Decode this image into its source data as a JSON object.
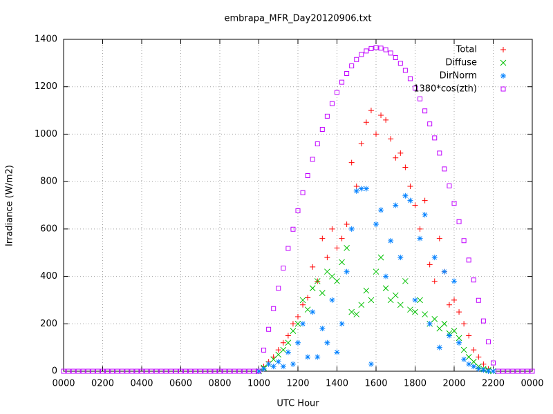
{
  "chart_data": {
    "type": "scatter",
    "title": "embrapa_MFR_Day20120906.txt",
    "xlabel": "UTC Hour",
    "ylabel": "Irradiance (W/m2)",
    "xlim": [
      0,
      24
    ],
    "ylim": [
      0,
      1400
    ],
    "xticks": [
      {
        "value": 0,
        "label": "0000"
      },
      {
        "value": 2,
        "label": "0200"
      },
      {
        "value": 4,
        "label": "0400"
      },
      {
        "value": 6,
        "label": "0600"
      },
      {
        "value": 8,
        "label": "0800"
      },
      {
        "value": 10,
        "label": "1000"
      },
      {
        "value": 12,
        "label": "1200"
      },
      {
        "value": 14,
        "label": "1400"
      },
      {
        "value": 16,
        "label": "1600"
      },
      {
        "value": 18,
        "label": "1800"
      },
      {
        "value": 20,
        "label": "2000"
      },
      {
        "value": 22,
        "label": "2200"
      },
      {
        "value": 24,
        "label": "0000"
      }
    ],
    "yticks": [
      0,
      200,
      400,
      600,
      800,
      1000,
      1200,
      1400
    ],
    "grid": true,
    "legend": "top-right",
    "series": [
      {
        "name": "Total",
        "color": "#ff0000",
        "marker": "plus",
        "x": [
          10,
          10.25,
          10.5,
          10.75,
          11,
          11.25,
          11.5,
          11.75,
          12,
          12.25,
          12.5,
          12.75,
          13,
          13.25,
          13.5,
          13.75,
          14,
          14.25,
          14.5,
          14.75,
          15,
          15.25,
          15.5,
          15.75,
          16,
          16.25,
          16.5,
          16.75,
          17,
          17.25,
          17.5,
          17.75,
          18,
          18.25,
          18.5,
          18.75,
          19,
          19.25,
          19.5,
          19.75,
          20,
          20.25,
          20.5,
          20.75,
          21,
          21.25,
          21.5,
          21.75,
          22
        ],
        "values": [
          0,
          20,
          40,
          60,
          90,
          120,
          150,
          200,
          230,
          280,
          310,
          440,
          380,
          560,
          480,
          600,
          520,
          560,
          620,
          880,
          780,
          960,
          1050,
          1100,
          1000,
          1080,
          1060,
          980,
          900,
          920,
          860,
          780,
          700,
          600,
          720,
          450,
          380,
          560,
          420,
          280,
          300,
          250,
          200,
          150,
          90,
          60,
          30,
          10,
          0
        ]
      },
      {
        "name": "Diffuse",
        "color": "#00c000",
        "marker": "cross",
        "x": [
          10,
          10.25,
          10.5,
          10.75,
          11,
          11.25,
          11.5,
          11.75,
          12,
          12.25,
          12.5,
          12.75,
          13,
          13.25,
          13.5,
          13.75,
          14,
          14.25,
          14.5,
          14.75,
          15,
          15.25,
          15.5,
          15.75,
          16,
          16.25,
          16.5,
          16.75,
          17,
          17.25,
          17.5,
          17.75,
          18,
          18.25,
          18.5,
          18.75,
          19,
          19.25,
          19.5,
          19.75,
          20,
          20.25,
          20.5,
          20.75,
          21,
          21.25,
          21.5,
          21.75,
          22
        ],
        "values": [
          0,
          15,
          30,
          50,
          70,
          90,
          120,
          170,
          200,
          300,
          260,
          350,
          380,
          330,
          420,
          400,
          380,
          460,
          520,
          250,
          240,
          280,
          340,
          300,
          420,
          480,
          350,
          300,
          320,
          280,
          380,
          260,
          250,
          300,
          240,
          200,
          220,
          180,
          200,
          160,
          170,
          140,
          90,
          60,
          40,
          20,
          10,
          5,
          0
        ]
      },
      {
        "name": "DirNorm",
        "color": "#0080ff",
        "marker": "star",
        "x": [
          10,
          10.25,
          10.5,
          10.75,
          11,
          11.25,
          11.5,
          11.75,
          12,
          12.25,
          12.5,
          12.75,
          13,
          13.25,
          13.5,
          13.75,
          14,
          14.25,
          14.5,
          14.75,
          15,
          15.25,
          15.5,
          15.75,
          16,
          16.25,
          16.5,
          16.75,
          17,
          17.25,
          17.5,
          17.75,
          18,
          18.25,
          18.5,
          18.75,
          19,
          19.25,
          19.5,
          19.75,
          20,
          20.25,
          20.5,
          20.75,
          21,
          21.25,
          21.5,
          21.75,
          22
        ],
        "values": [
          0,
          10,
          30,
          20,
          40,
          20,
          80,
          30,
          120,
          200,
          60,
          250,
          60,
          180,
          120,
          300,
          80,
          200,
          420,
          600,
          760,
          770,
          770,
          30,
          620,
          680,
          400,
          550,
          700,
          480,
          740,
          720,
          300,
          560,
          660,
          200,
          480,
          100,
          420,
          150,
          380,
          120,
          50,
          30,
          20,
          10,
          5,
          0,
          0
        ]
      },
      {
        "name": "1380*cos(zth)",
        "color": "#c000ff",
        "marker": "square",
        "x": [
          0,
          0.25,
          0.5,
          0.75,
          1,
          1.25,
          1.5,
          1.75,
          2,
          2.25,
          2.5,
          2.75,
          3,
          3.25,
          3.5,
          3.75,
          4,
          4.25,
          4.5,
          4.75,
          5,
          5.25,
          5.5,
          5.75,
          6,
          6.25,
          6.5,
          6.75,
          7,
          7.25,
          7.5,
          7.75,
          8,
          8.25,
          8.5,
          8.75,
          9,
          9.25,
          9.5,
          9.75,
          10,
          10.25,
          10.5,
          10.75,
          11,
          11.25,
          11.5,
          11.75,
          12,
          12.25,
          12.5,
          12.75,
          13,
          13.25,
          13.5,
          13.75,
          14,
          14.25,
          14.5,
          14.75,
          15,
          15.25,
          15.5,
          15.75,
          16,
          16.25,
          16.5,
          16.75,
          17,
          17.25,
          17.5,
          17.75,
          18,
          18.25,
          18.5,
          18.75,
          19,
          19.25,
          19.5,
          19.75,
          20,
          20.25,
          20.5,
          20.75,
          21,
          21.25,
          21.5,
          21.75,
          22,
          22.25,
          22.5,
          22.75,
          23,
          23.25,
          23.5,
          23.75,
          24
        ],
        "values": [
          0,
          0,
          0,
          0,
          0,
          0,
          0,
          0,
          0,
          0,
          0,
          0,
          0,
          0,
          0,
          0,
          0,
          0,
          0,
          0,
          0,
          0,
          0,
          0,
          0,
          0,
          0,
          0,
          0,
          0,
          0,
          0,
          0,
          0,
          0,
          0,
          0,
          0,
          0,
          0,
          0,
          89,
          177,
          264,
          350,
          435,
          518,
          599,
          677,
          753,
          825,
          894,
          959,
          1020,
          1076,
          1129,
          1176,
          1219,
          1256,
          1288,
          1315,
          1336,
          1351,
          1361,
          1365,
          1363,
          1356,
          1342,
          1323,
          1299,
          1269,
          1234,
          1194,
          1149,
          1098,
          1043,
          984,
          920,
          853,
          782,
          708,
          631,
          551,
          469,
          385,
          299,
          212,
          124,
          35,
          0,
          0,
          0,
          0,
          0,
          0,
          0,
          0
        ]
      }
    ]
  }
}
